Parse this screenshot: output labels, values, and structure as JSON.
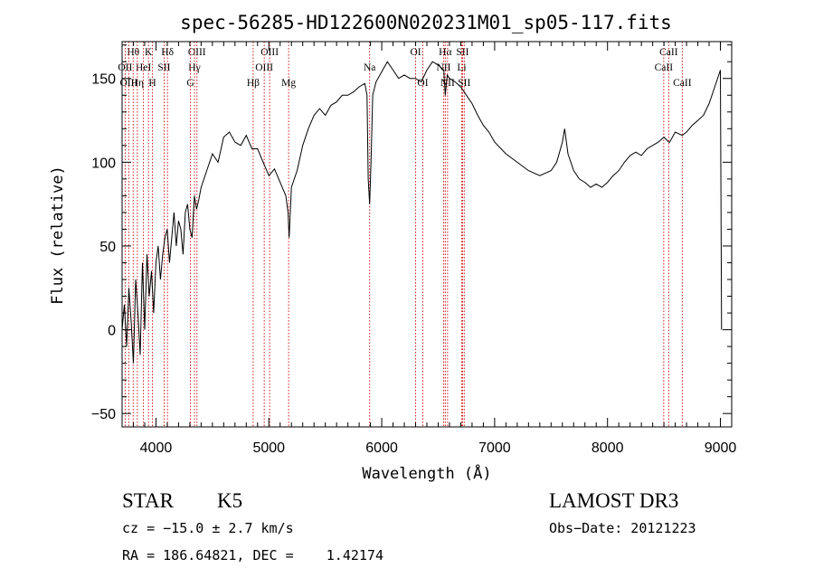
{
  "chart_data": {
    "type": "line",
    "title": "spec-56285-HD122600N020231M01_sp05-117.fits",
    "xlabel": "Wavelength (Å)",
    "ylabel": "Flux (relative)",
    "xlim": [
      3700,
      9100
    ],
    "ylim": [
      -58,
      172
    ],
    "x_ticks": [
      4000,
      5000,
      6000,
      7000,
      8000,
      9000
    ],
    "y_ticks": [
      -50,
      0,
      50,
      100,
      150
    ],
    "grid": false,
    "series": [
      {
        "color": "#000000",
        "x": [
          3700,
          3720,
          3740,
          3760,
          3780,
          3800,
          3820,
          3840,
          3860,
          3880,
          3900,
          3920,
          3940,
          3960,
          3980,
          4000,
          4020,
          4040,
          4060,
          4080,
          4100,
          4120,
          4140,
          4160,
          4180,
          4200,
          4220,
          4240,
          4260,
          4280,
          4300,
          4320,
          4340,
          4360,
          4380,
          4400,
          4450,
          4500,
          4550,
          4600,
          4650,
          4700,
          4750,
          4800,
          4850,
          4900,
          4950,
          5000,
          5050,
          5100,
          5150,
          5170,
          5180,
          5200,
          5250,
          5300,
          5350,
          5400,
          5450,
          5500,
          5550,
          5600,
          5650,
          5700,
          5750,
          5800,
          5850,
          5870,
          5880,
          5893,
          5905,
          5920,
          5950,
          6000,
          6050,
          6100,
          6150,
          6200,
          6250,
          6300,
          6350,
          6400,
          6450,
          6500,
          6550,
          6563,
          6580,
          6600,
          6650,
          6700,
          6750,
          6800,
          6850,
          6900,
          6950,
          7000,
          7100,
          7200,
          7300,
          7400,
          7500,
          7550,
          7600,
          7620,
          7650,
          7700,
          7750,
          7800,
          7850,
          7900,
          7950,
          8000,
          8050,
          8100,
          8150,
          8200,
          8250,
          8300,
          8350,
          8400,
          8450,
          8500,
          8542,
          8550,
          8600,
          8662,
          8700,
          8750,
          8800,
          8850,
          8900,
          8950,
          9000,
          9010
        ],
        "values": [
          0,
          15,
          -10,
          25,
          5,
          -20,
          30,
          10,
          -15,
          40,
          0,
          45,
          20,
          35,
          10,
          40,
          50,
          30,
          45,
          55,
          60,
          40,
          55,
          70,
          50,
          65,
          60,
          45,
          70,
          75,
          60,
          55,
          80,
          72,
          78,
          85,
          95,
          105,
          100,
          115,
          118,
          112,
          110,
          116,
          108,
          108,
          100,
          92,
          96,
          88,
          80,
          70,
          55,
          85,
          95,
          110,
          120,
          128,
          132,
          128,
          134,
          136,
          140,
          140,
          142,
          145,
          147,
          140,
          90,
          75,
          100,
          140,
          148,
          154,
          160,
          155,
          150,
          152,
          150,
          150,
          148,
          155,
          160,
          158,
          155,
          140,
          152,
          150,
          148,
          145,
          140,
          135,
          128,
          122,
          118,
          112,
          105,
          100,
          95,
          92,
          95,
          100,
          112,
          120,
          105,
          95,
          90,
          88,
          85,
          87,
          85,
          88,
          92,
          95,
          100,
          104,
          106,
          104,
          108,
          110,
          112,
          115,
          112,
          112,
          118,
          116,
          118,
          122,
          125,
          128,
          135,
          145,
          155,
          0
        ]
      }
    ],
    "line_markers": [
      {
        "label": "Hθ",
        "wl": 3798,
        "row": 1
      },
      {
        "label": "OII",
        "wl": 3727,
        "row": 2
      },
      {
        "label": "OIII",
        "wl": 3759,
        "row": 3
      },
      {
        "label": "K",
        "wl": 3934,
        "row": 1
      },
      {
        "label": "HeI",
        "wl": 3889,
        "row": 2
      },
      {
        "label": "Hη",
        "wl": 3835,
        "row": 3
      },
      {
        "label": "SII",
        "wl": 4072,
        "row": 2
      },
      {
        "label": "H",
        "wl": 3969,
        "row": 3
      },
      {
        "label": "Hδ",
        "wl": 4102,
        "row": 1
      },
      {
        "label": "OIII",
        "wl": 4363,
        "row": 1
      },
      {
        "label": "Hγ",
        "wl": 4341,
        "row": 2
      },
      {
        "label": "G",
        "wl": 4305,
        "row": 3
      },
      {
        "label": "OIII",
        "wl": 5007,
        "row": 1
      },
      {
        "label": "OIII",
        "wl": 4959,
        "row": 2
      },
      {
        "label": "Hβ",
        "wl": 4861,
        "row": 3
      },
      {
        "label": "Mg",
        "wl": 5175,
        "row": 3
      },
      {
        "label": "Na",
        "wl": 5893,
        "row": 2
      },
      {
        "label": "OI",
        "wl": 6300,
        "row": 1
      },
      {
        "label": "OI",
        "wl": 6364,
        "row": 3
      },
      {
        "label": "Hα",
        "wl": 6563,
        "row": 1
      },
      {
        "label": "SII",
        "wl": 6716,
        "row": 1
      },
      {
        "label": "NII",
        "wl": 6548,
        "row": 2
      },
      {
        "label": "Li",
        "wl": 6708,
        "row": 2
      },
      {
        "label": "NII",
        "wl": 6583,
        "row": 3
      },
      {
        "label": "SII",
        "wl": 6731,
        "row": 3
      },
      {
        "label": "CaII",
        "wl": 8542,
        "row": 1
      },
      {
        "label": "CaII",
        "wl": 8498,
        "row": 2
      },
      {
        "label": "CaII",
        "wl": 8662,
        "row": 3
      }
    ]
  },
  "info": {
    "class": "STAR",
    "subclass": "K5",
    "survey": "LAMOST DR3",
    "cz": "cz = −15.0 ± 2.7 km/s",
    "obs_date": "Obs−Date: 20121223",
    "coords": "RA = 186.64821, DEC =    1.42174"
  }
}
